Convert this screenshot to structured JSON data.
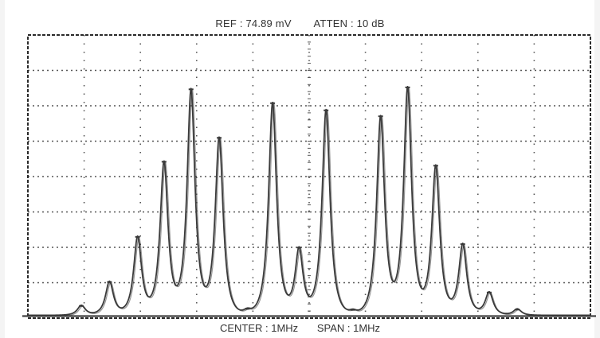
{
  "header": {
    "ref": "REF : 74.89 mV",
    "atten": "ATTEN : 10 dB"
  },
  "footer": {
    "center": "CENTER : 1MHz",
    "span": "SPAN : 1MHz"
  },
  "colors": {
    "trace": "#3a3a3a",
    "grid": "#555555",
    "frame": "#2a2a2a"
  },
  "chart_data": {
    "type": "line",
    "grid": true,
    "grid_divisions": {
      "x": 10,
      "y": 8
    },
    "xlim": [
      0,
      10
    ],
    "ylim": [
      0,
      8
    ],
    "baseline_level": 0.08,
    "peak_width_div": 0.11,
    "peaks": [
      {
        "x": 0.95,
        "y": 0.28
      },
      {
        "x": 1.45,
        "y": 0.95
      },
      {
        "x": 1.95,
        "y": 2.2
      },
      {
        "x": 2.42,
        "y": 4.3
      },
      {
        "x": 2.9,
        "y": 6.35
      },
      {
        "x": 3.4,
        "y": 5.0
      },
      {
        "x": 3.9,
        "y": 0.12
      },
      {
        "x": 4.35,
        "y": 6.0
      },
      {
        "x": 4.82,
        "y": 1.85
      },
      {
        "x": 5.3,
        "y": 5.8
      },
      {
        "x": 5.78,
        "y": 0.1
      },
      {
        "x": 6.27,
        "y": 5.6
      },
      {
        "x": 6.75,
        "y": 6.4
      },
      {
        "x": 7.25,
        "y": 4.2
      },
      {
        "x": 7.73,
        "y": 2.0
      },
      {
        "x": 8.2,
        "y": 0.65
      },
      {
        "x": 8.7,
        "y": 0.18
      }
    ]
  }
}
